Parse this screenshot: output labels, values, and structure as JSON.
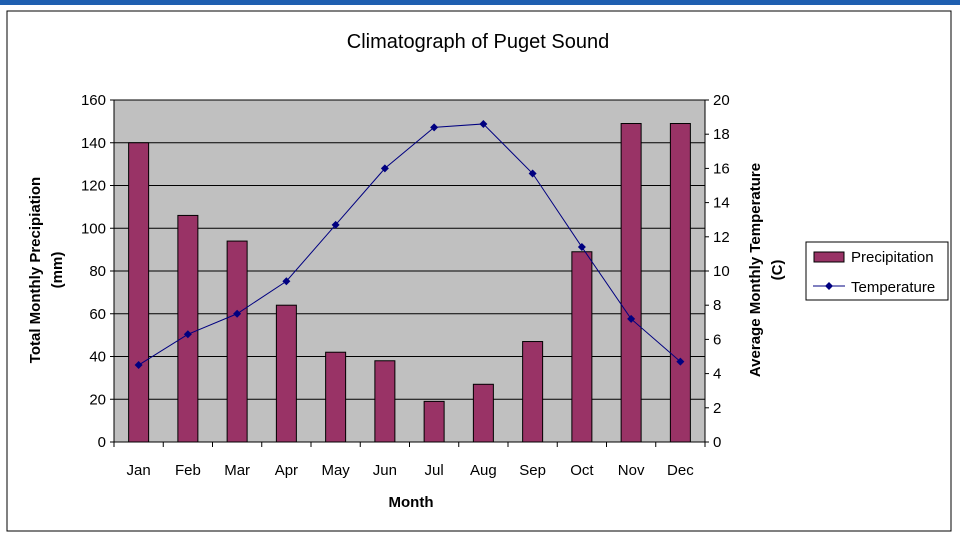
{
  "colors": {
    "top_bar": "#1f5fb0",
    "plot_bg": "#c0c0c0",
    "bar": "#993366",
    "line": "#000080",
    "grid": "#000000"
  },
  "chart_data": {
    "type": "bar",
    "title": "Climatograph of Puget Sound",
    "xlabel": "Month",
    "ylabel": [
      "Total Monthly Precipiation",
      "(mm)"
    ],
    "y2label": [
      "Average Monthly Temperature",
      "(C)"
    ],
    "categories": [
      "Jan",
      "Feb",
      "Mar",
      "Apr",
      "May",
      "Jun",
      "Jul",
      "Aug",
      "Sep",
      "Oct",
      "Nov",
      "Dec"
    ],
    "ylim": [
      0,
      160
    ],
    "y2lim": [
      0,
      20
    ],
    "y_ticks": [
      "0",
      "20",
      "40",
      "60",
      "80",
      "100",
      "120",
      "140",
      "160"
    ],
    "y2_ticks": [
      "0",
      "2",
      "4",
      "6",
      "8",
      "10",
      "12",
      "14",
      "16",
      "18",
      "20"
    ],
    "grid": true,
    "legend_position": "right",
    "series": [
      {
        "name": "Precipitation",
        "type": "bar",
        "axis": "left",
        "values": [
          140,
          106,
          94,
          64,
          42,
          38,
          19,
          27,
          47,
          89,
          149,
          149
        ]
      },
      {
        "name": "Temperature",
        "type": "line",
        "axis": "right",
        "values": [
          4.5,
          6.3,
          7.5,
          9.4,
          12.7,
          16.0,
          18.4,
          18.6,
          15.7,
          11.4,
          7.2,
          4.7
        ]
      }
    ]
  }
}
